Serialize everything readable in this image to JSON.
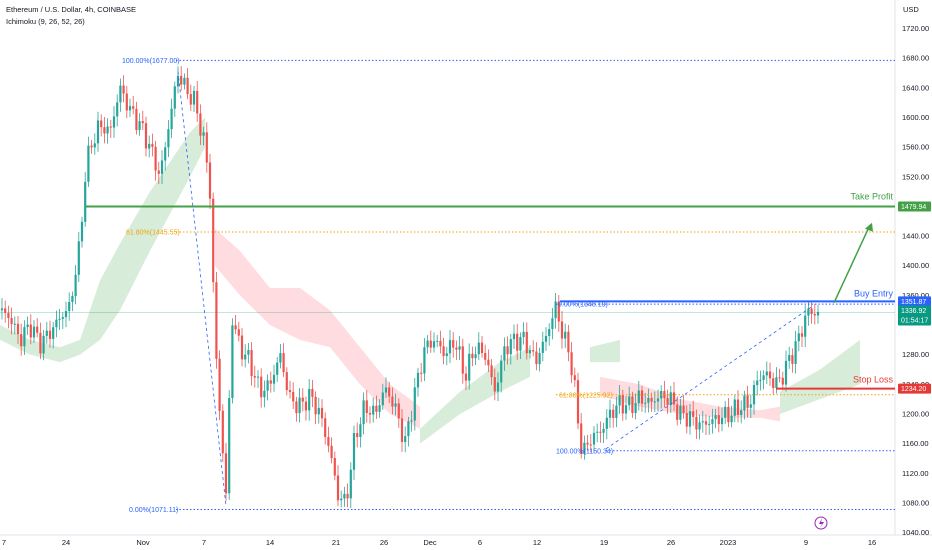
{
  "header": {
    "symbol_line": "Ethereum / U.S. Dollar, 4h, COINBASE",
    "indicator_line": "Ichimoku (9, 26, 52, 26)"
  },
  "price_axis": {
    "currency": "USD",
    "ticks": [
      "1720.00",
      "1680.00",
      "1640.00",
      "1600.00",
      "1560.00",
      "1520.00",
      "1480.00",
      "1440.00",
      "1400.00",
      "1360.00",
      "1280.00",
      "1240.00",
      "1200.00",
      "1160.00",
      "1120.00",
      "1080.00",
      "1040.00"
    ]
  },
  "time_axis": {
    "labels": [
      "7",
      "24",
      "Nov",
      "7",
      "14",
      "21",
      "26",
      "Dec",
      "6",
      "12",
      "19",
      "26",
      "2023",
      "9",
      "16"
    ]
  },
  "colors": {
    "bull": "#26a69a",
    "bear": "#ef5350",
    "take_profit": "#43a047",
    "buy_entry": "#2962ff",
    "stop_loss": "#e53935",
    "fib_blue": "#2962ff",
    "fib_orange": "#f0a30a",
    "current_price": "#089981",
    "kumo_bull": "#c8e6c9",
    "kumo_bear": "#ffcdd2"
  },
  "annotations": {
    "take_profit_label": "Take Profit",
    "buy_entry_label": "Buy Entry",
    "stop_loss_label": "Stop Loss"
  },
  "price_tags": {
    "take_profit": "1479.94",
    "buy_entry": "1351.87",
    "current_price": "1336.92",
    "countdown": "01:54:17",
    "stop_loss": "1234.20"
  },
  "chart_data": {
    "type": "candlestick",
    "title": "Ethereum / U.S. Dollar, 4h, COINBASE",
    "ylim": [
      1030,
      1745
    ],
    "y_ticks": [
      1720,
      1680,
      1640,
      1600,
      1560,
      1520,
      1480,
      1440,
      1400,
      1360,
      1280,
      1240,
      1200,
      1160,
      1120,
      1080,
      1040
    ],
    "levels": {
      "take_profit": 1479.94,
      "buy_entry": 1351.87,
      "stop_loss": 1234.2,
      "current_price": 1336.92
    },
    "fib_left": [
      {
        "label": "100.00%(1677.00)",
        "value": 1677.0
      },
      {
        "label": "61.80%(1445.55)",
        "value": 1445.55
      },
      {
        "label": "0.00%(1071.11)",
        "value": 1071.11
      }
    ],
    "fib_right": [
      {
        "label": "0.00%(1348.19)",
        "value": 1348.19
      },
      {
        "label": "61.80%(1225.92)",
        "value": 1225.92
      },
      {
        "label": "100.00%(1150.34)",
        "value": 1150.34
      }
    ],
    "price_path": [
      [
        0,
        1340
      ],
      [
        10,
        1330
      ],
      [
        20,
        1300
      ],
      [
        30,
        1320
      ],
      [
        40,
        1295
      ],
      [
        50,
        1310
      ],
      [
        60,
        1330
      ],
      [
        70,
        1345
      ],
      [
        80,
        1430
      ],
      [
        85,
        1520
      ],
      [
        90,
        1560
      ],
      [
        100,
        1590
      ],
      [
        110,
        1580
      ],
      [
        120,
        1640
      ],
      [
        130,
        1610
      ],
      [
        140,
        1590
      ],
      [
        150,
        1560
      ],
      [
        160,
        1520
      ],
      [
        170,
        1600
      ],
      [
        178,
        1660
      ],
      [
        185,
        1640
      ],
      [
        195,
        1620
      ],
      [
        205,
        1560
      ],
      [
        210,
        1500
      ],
      [
        215,
        1300
      ],
      [
        220,
        1200
      ],
      [
        226,
        1090
      ],
      [
        232,
        1330
      ],
      [
        240,
        1290
      ],
      [
        250,
        1270
      ],
      [
        260,
        1230
      ],
      [
        270,
        1240
      ],
      [
        280,
        1280
      ],
      [
        290,
        1220
      ],
      [
        300,
        1210
      ],
      [
        310,
        1225
      ],
      [
        320,
        1200
      ],
      [
        330,
        1150
      ],
      [
        338,
        1090
      ],
      [
        346,
        1080
      ],
      [
        355,
        1170
      ],
      [
        365,
        1210
      ],
      [
        375,
        1200
      ],
      [
        385,
        1235
      ],
      [
        395,
        1210
      ],
      [
        405,
        1160
      ],
      [
        415,
        1230
      ],
      [
        425,
        1290
      ],
      [
        435,
        1300
      ],
      [
        445,
        1280
      ],
      [
        455,
        1300
      ],
      [
        465,
        1250
      ],
      [
        475,
        1290
      ],
      [
        485,
        1280
      ],
      [
        495,
        1230
      ],
      [
        505,
        1290
      ],
      [
        515,
        1300
      ],
      [
        525,
        1300
      ],
      [
        535,
        1270
      ],
      [
        545,
        1300
      ],
      [
        552,
        1330
      ],
      [
        556,
        1345
      ],
      [
        562,
        1310
      ],
      [
        570,
        1280
      ],
      [
        575,
        1230
      ],
      [
        580,
        1160
      ],
      [
        585,
        1150
      ],
      [
        592,
        1170
      ],
      [
        600,
        1175
      ],
      [
        610,
        1200
      ],
      [
        620,
        1215
      ],
      [
        630,
        1210
      ],
      [
        640,
        1222
      ],
      [
        650,
        1215
      ],
      [
        660,
        1225
      ],
      [
        670,
        1220
      ],
      [
        680,
        1200
      ],
      [
        690,
        1195
      ],
      [
        700,
        1185
      ],
      [
        710,
        1190
      ],
      [
        720,
        1195
      ],
      [
        730,
        1200
      ],
      [
        740,
        1210
      ],
      [
        750,
        1215
      ],
      [
        757,
        1245
      ],
      [
        765,
        1255
      ],
      [
        772,
        1245
      ],
      [
        778,
        1240
      ],
      [
        785,
        1260
      ],
      [
        795,
        1290
      ],
      [
        800,
        1305
      ],
      [
        805,
        1330
      ],
      [
        810,
        1340
      ],
      [
        815,
        1335
      ],
      [
        820,
        1337
      ]
    ],
    "kumo_bull": [
      [
        [
          0,
          1320
        ],
        [
          30,
          1300
        ],
        [
          60,
          1290
        ],
        [
          80,
          1300
        ],
        [
          100,
          1380
        ],
        [
          120,
          1430
        ],
        [
          150,
          1500
        ],
        [
          170,
          1540
        ],
        [
          190,
          1580
        ],
        [
          205,
          1600
        ],
        [
          205,
          1560
        ],
        [
          190,
          1520
        ],
        [
          170,
          1470
        ],
        [
          150,
          1420
        ],
        [
          120,
          1340
        ],
        [
          100,
          1300
        ],
        [
          80,
          1280
        ],
        [
          60,
          1270
        ],
        [
          30,
          1280
        ],
        [
          0,
          1300
        ]
      ],
      [
        [
          420,
          1180
        ],
        [
          460,
          1230
        ],
        [
          500,
          1270
        ],
        [
          530,
          1290
        ],
        [
          530,
          1250
        ],
        [
          500,
          1230
        ],
        [
          460,
          1200
        ],
        [
          420,
          1160
        ]
      ],
      [
        [
          590,
          1290
        ],
        [
          620,
          1300
        ],
        [
          620,
          1270
        ],
        [
          590,
          1270
        ]
      ],
      [
        [
          780,
          1230
        ],
        [
          820,
          1260
        ],
        [
          860,
          1300
        ],
        [
          860,
          1240
        ],
        [
          820,
          1220
        ],
        [
          780,
          1200
        ]
      ]
    ],
    "kumo_bear": [
      [
        [
          215,
          1450
        ],
        [
          240,
          1420
        ],
        [
          270,
          1370
        ],
        [
          300,
          1370
        ],
        [
          330,
          1340
        ],
        [
          360,
          1290
        ],
        [
          390,
          1240
        ],
        [
          420,
          1210
        ],
        [
          420,
          1180
        ],
        [
          390,
          1200
        ],
        [
          360,
          1240
        ],
        [
          330,
          1290
        ],
        [
          300,
          1300
        ],
        [
          270,
          1320
        ],
        [
          240,
          1360
        ],
        [
          215,
          1400
        ]
      ],
      [
        [
          600,
          1250
        ],
        [
          640,
          1240
        ],
        [
          680,
          1220
        ],
        [
          720,
          1210
        ],
        [
          760,
          1205
        ],
        [
          780,
          1210
        ],
        [
          780,
          1190
        ],
        [
          760,
          1195
        ],
        [
          720,
          1195
        ],
        [
          680,
          1200
        ],
        [
          640,
          1210
        ],
        [
          600,
          1225
        ]
      ]
    ]
  }
}
